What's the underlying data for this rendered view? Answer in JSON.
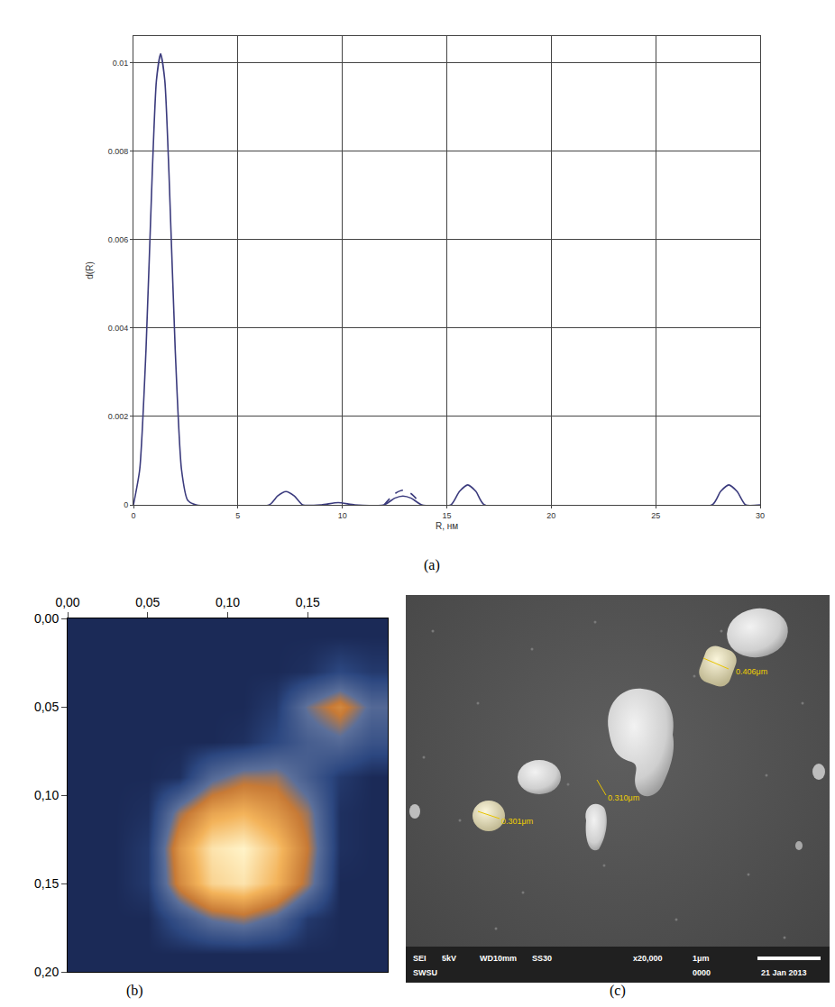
{
  "chart_data": [
    {
      "panel": "(a)",
      "type": "line",
      "x_label": "R, нм",
      "y_label": "d(R)",
      "xlim": [
        0,
        30
      ],
      "xticks": [
        0,
        5,
        10,
        15,
        20,
        25,
        30
      ],
      "ylim": [
        0,
        0.0106
      ],
      "yticks": [
        0,
        0.002,
        0.004,
        0.006,
        0.008,
        0.01
      ],
      "grid": true,
      "series": [
        {
          "color": "#3b3b7d",
          "line_style": "solid",
          "x": [
            0,
            0.3,
            0.6,
            0.9,
            1.1,
            1.3,
            1.5,
            1.7,
            2.0,
            2.3,
            2.6,
            3.0,
            6.5,
            6.9,
            7.3,
            7.7,
            8.1,
            9.0,
            9.8,
            10.6,
            12.0,
            12.5,
            12.9,
            13.3,
            13.8,
            15.2,
            15.6,
            16.0,
            16.4,
            16.8,
            27.7,
            28.1,
            28.5,
            28.9,
            29.3,
            30
          ],
          "values": [
            0,
            0.0008,
            0.0035,
            0.0075,
            0.0096,
            0.0102,
            0.0096,
            0.0075,
            0.0035,
            0.0008,
            0.0001,
            0,
            0,
            0.0002,
            0.0003,
            0.0002,
            0,
            0,
            5e-05,
            0,
            0,
            0.00015,
            0.0002,
            0.00015,
            0,
            0,
            0.0003,
            0.00045,
            0.0003,
            0,
            0,
            0.0003,
            0.00045,
            0.0003,
            0,
            0
          ]
        },
        {
          "color": "#3b3b7d",
          "line_style": "dash",
          "x": [
            12.0,
            12.5,
            12.9,
            13.3,
            13.8
          ],
          "values": [
            0,
            0.00025,
            0.00033,
            0.00025,
            0
          ]
        }
      ]
    },
    {
      "panel": "(b)",
      "type": "heatmap",
      "xlim": [
        0,
        0.2
      ],
      "ylim": [
        0.2,
        0
      ],
      "xticks": [
        {
          "value": 0,
          "label": "0,00"
        },
        {
          "value": 0.05,
          "label": "0,05"
        },
        {
          "value": 0.1,
          "label": "0,10"
        },
        {
          "value": 0.15,
          "label": "0,15"
        }
      ],
      "yticks": [
        {
          "value": 0,
          "label": "0,00"
        },
        {
          "value": 0.05,
          "label": "0,05"
        },
        {
          "value": 0.1,
          "label": "0,10"
        },
        {
          "value": 0.15,
          "label": "0,15"
        },
        {
          "value": 0.2,
          "label": "0,20"
        }
      ],
      "x": [
        0.01,
        0.03,
        0.05,
        0.07,
        0.09,
        0.11,
        0.13,
        0.15,
        0.17,
        0.19
      ],
      "y": [
        0.01,
        0.03,
        0.05,
        0.07,
        0.09,
        0.11,
        0.13,
        0.15,
        0.17,
        0.19
      ],
      "z": [
        [
          10,
          10,
          10,
          10,
          10,
          10,
          10,
          10,
          10,
          10
        ],
        [
          10,
          10,
          10,
          10,
          10,
          10,
          10,
          12,
          20,
          15
        ],
        [
          10,
          10,
          10,
          10,
          10,
          10,
          15,
          40,
          55,
          35
        ],
        [
          10,
          10,
          10,
          10,
          10,
          12,
          20,
          30,
          35,
          25
        ],
        [
          10,
          10,
          10,
          12,
          35,
          45,
          45,
          30,
          15,
          10
        ],
        [
          10,
          10,
          12,
          45,
          65,
          70,
          60,
          45,
          12,
          10
        ],
        [
          10,
          10,
          15,
          60,
          85,
          90,
          75,
          50,
          12,
          10
        ],
        [
          10,
          10,
          15,
          55,
          80,
          85,
          70,
          45,
          10,
          10
        ],
        [
          10,
          10,
          10,
          25,
          40,
          45,
          35,
          15,
          10,
          10
        ],
        [
          10,
          10,
          10,
          10,
          10,
          10,
          10,
          10,
          10,
          10
        ]
      ]
    }
  ],
  "image": {
    "panel": "(c)",
    "measurements": [
      "0.406μm",
      "0.310μm",
      "0.301μm"
    ],
    "info_bar": [
      "SEI",
      "5kV",
      "WD10mm",
      "SS30",
      "x20,000",
      "1μm",
      "SWSU",
      "0000",
      "21 Jan 2013"
    ]
  }
}
